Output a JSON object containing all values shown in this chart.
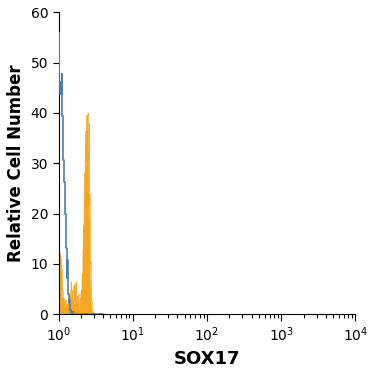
{
  "title": "",
  "xlabel": "SOX17",
  "ylabel": "Relative Cell Number",
  "xlim_log": [
    0,
    4
  ],
  "ylim": [
    0,
    60
  ],
  "yticks": [
    0,
    10,
    20,
    30,
    40,
    50,
    60
  ],
  "blue_color": "#4a7fb5",
  "orange_color": "#f5a623",
  "background_color": "#ffffff",
  "xlabel_fontsize": 13,
  "ylabel_fontsize": 12,
  "tick_fontsize": 10
}
